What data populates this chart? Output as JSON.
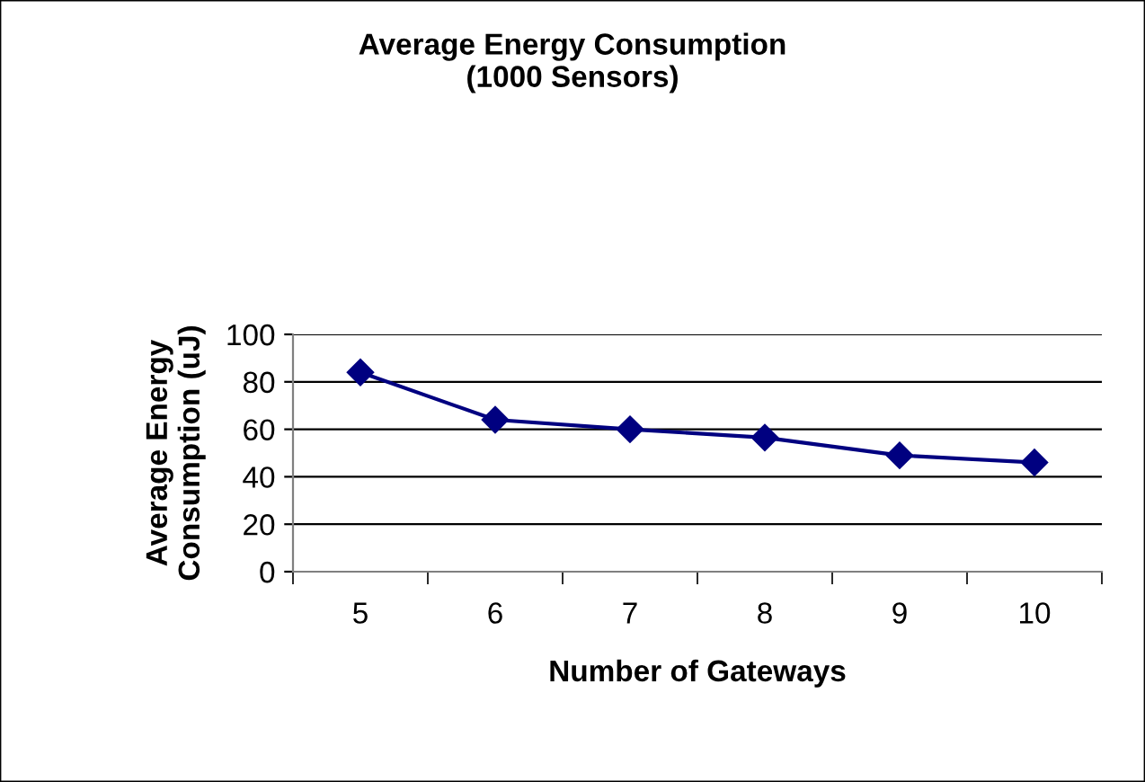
{
  "chart_data": {
    "type": "line",
    "title": "Average Energy Consumption\n(1000 Sensors)",
    "xlabel": "Number of Gateways",
    "ylabel": "Average Energy\nConsumption (uJ)",
    "categories": [
      "5",
      "6",
      "7",
      "8",
      "9",
      "10"
    ],
    "series": [
      {
        "color": "#000080",
        "values": [
          84,
          64,
          60,
          56.5,
          49,
          46
        ]
      }
    ],
    "ylim": [
      0,
      100
    ],
    "yticks": [
      0,
      20,
      40,
      60,
      80,
      100
    ],
    "grid": "y",
    "marker": "diamond",
    "line_style": "solid",
    "legend": false
  }
}
